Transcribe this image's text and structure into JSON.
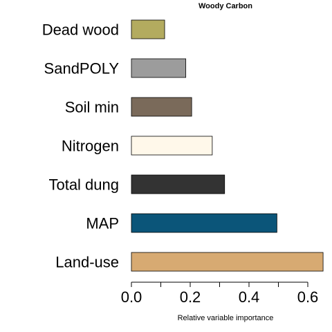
{
  "chart_data": {
    "type": "bar",
    "orientation": "horizontal",
    "title": "Woody Carbon",
    "xlabel": "Relative variable importance",
    "ylabel": "",
    "xlim": [
      0,
      0.65
    ],
    "x_ticks": [
      0.0,
      0.1,
      0.2,
      0.3,
      0.4,
      0.5,
      0.6
    ],
    "x_tick_labels": [
      "0.0",
      "",
      "0.2",
      "",
      "0.4",
      "",
      "0.6"
    ],
    "categories": [
      "Dead wood",
      "SandPOLY",
      "Soil min",
      "Nitrogen",
      "Total dung",
      "MAP",
      "Land-use"
    ],
    "values": [
      0.113,
      0.185,
      0.205,
      0.275,
      0.317,
      0.495,
      0.652
    ],
    "colors": [
      "#b3ab5f",
      "#9c9c9c",
      "#7a6a5a",
      "#fff8ea",
      "#333333",
      "#0b5579",
      "#d7aa72"
    ],
    "grid": false,
    "legend": "none"
  }
}
